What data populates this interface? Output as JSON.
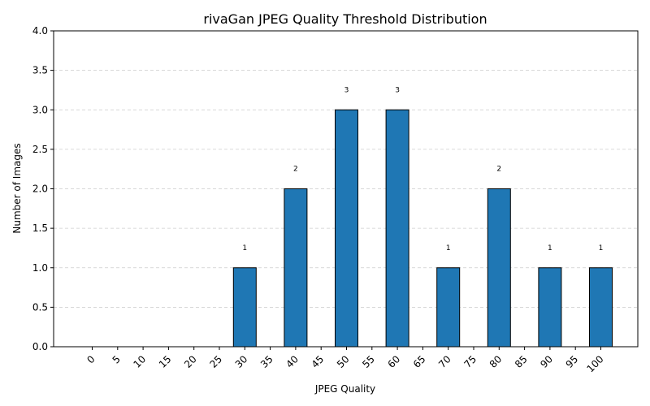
{
  "chart_data": {
    "type": "bar",
    "title": "rivaGan JPEG Quality Threshold Distribution",
    "xlabel": "JPEG Quality",
    "ylabel": "Number of Images",
    "categories": [
      "0",
      "5",
      "10",
      "15",
      "20",
      "25",
      "30",
      "35",
      "40",
      "45",
      "50",
      "55",
      "60",
      "65",
      "70",
      "75",
      "80",
      "85",
      "90",
      "95",
      "100"
    ],
    "values": [
      0,
      0,
      0,
      0,
      0,
      0,
      1,
      0,
      2,
      0,
      3,
      0,
      3,
      0,
      1,
      0,
      2,
      0,
      1,
      0,
      1
    ],
    "ylim": [
      0,
      4
    ],
    "yticks": [
      "0.0",
      "0.5",
      "1.0",
      "1.5",
      "2.0",
      "2.5",
      "3.0",
      "3.5",
      "4.0"
    ],
    "grid": "y-dashed",
    "bar_color": "#1f77b4",
    "edge_color": "#000000",
    "data_labels": "shown above nonzero bars"
  }
}
